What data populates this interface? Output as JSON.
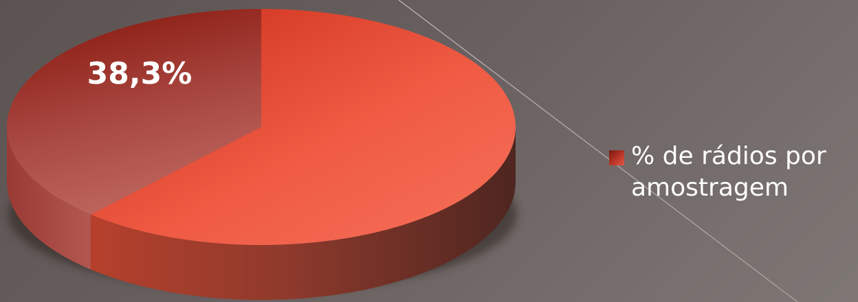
{
  "chart_data": {
    "type": "pie",
    "style": "3d",
    "slices": [
      {
        "value": 38.3,
        "label": "38,3%",
        "color": "#a8423a"
      },
      {
        "value": 61.7,
        "label": "",
        "color": "#e8533b"
      }
    ],
    "legend": [
      {
        "name": "% de rádios por amostragem",
        "color": "#b52a1f"
      }
    ],
    "legend_position": "right"
  }
}
